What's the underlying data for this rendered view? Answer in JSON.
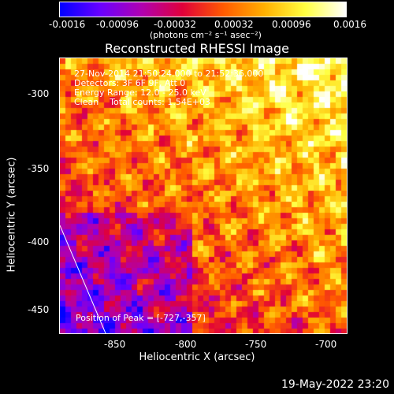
{
  "colorbar": {
    "tick_labels": [
      "-0.0016",
      "-0.00096",
      "-0.00032",
      "0.00032",
      "0.00096",
      "0.0016"
    ],
    "unit_label": "(photons cm⁻² s⁻¹ asec⁻²)",
    "colormap": [
      "#0000ff",
      "#6a00ff",
      "#b000b0",
      "#e0003a",
      "#ff5a00",
      "#ffb000",
      "#ffff40",
      "#ffffff"
    ]
  },
  "title": "Reconstructed RHESSI Image",
  "info_lines": [
    "27-Nov-2014 21:50:24.000 to 21:52:36.000",
    "Detectors: 3F 6F 9F, Att 0",
    "Energy Range: 12.0 - 25.0 keV",
    "Clean    Total counts: 1.54E+03"
  ],
  "peak_label": "Position of Peak = [-727,-357]",
  "axes": {
    "xlabel": "Heliocentric X (arcsec)",
    "ylabel": "Heliocentric Y (arcsec)",
    "xticks": [
      "-850",
      "-800",
      "-750",
      "-700"
    ],
    "yticks": [
      "-300",
      "-350",
      "-400",
      "-450"
    ]
  },
  "footer_date": "19-May-2022 23:20"
}
